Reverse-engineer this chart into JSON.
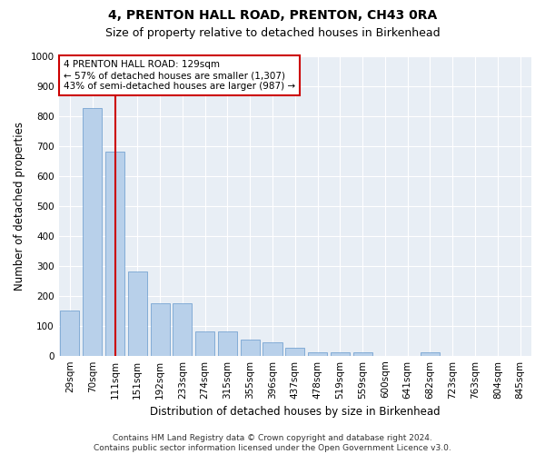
{
  "title": "4, PRENTON HALL ROAD, PRENTON, CH43 0RA",
  "subtitle": "Size of property relative to detached houses in Birkenhead",
  "xlabel": "Distribution of detached houses by size in Birkenhead",
  "ylabel": "Number of detached properties",
  "categories": [
    "29sqm",
    "70sqm",
    "111sqm",
    "151sqm",
    "192sqm",
    "233sqm",
    "274sqm",
    "315sqm",
    "355sqm",
    "396sqm",
    "437sqm",
    "478sqm",
    "519sqm",
    "559sqm",
    "600sqm",
    "641sqm",
    "682sqm",
    "723sqm",
    "763sqm",
    "804sqm",
    "845sqm"
  ],
  "values": [
    150,
    825,
    680,
    280,
    175,
    175,
    80,
    80,
    55,
    45,
    25,
    10,
    10,
    10,
    0,
    0,
    10,
    0,
    0,
    0,
    0
  ],
  "bar_color": "#b8d0ea",
  "bar_edge_color": "#6699cc",
  "marker_line_index": 2,
  "marker_line_color": "#cc0000",
  "annotation_box_color": "#cc0000",
  "annotation_text_line1": "4 PRENTON HALL ROAD: 129sqm",
  "annotation_text_line2": "← 57% of detached houses are smaller (1,307)",
  "annotation_text_line3": "43% of semi-detached houses are larger (987) →",
  "ylim": [
    0,
    1000
  ],
  "yticks": [
    0,
    100,
    200,
    300,
    400,
    500,
    600,
    700,
    800,
    900,
    1000
  ],
  "footer_line1": "Contains HM Land Registry data © Crown copyright and database right 2024.",
  "footer_line2": "Contains public sector information licensed under the Open Government Licence v3.0.",
  "fig_bg_color": "#ffffff",
  "plot_bg_color": "#e8eef5",
  "grid_color": "#ffffff",
  "title_fontsize": 10,
  "subtitle_fontsize": 9,
  "xlabel_fontsize": 8.5,
  "ylabel_fontsize": 8.5,
  "tick_fontsize": 7.5,
  "annotation_fontsize": 7.5,
  "footer_fontsize": 6.5
}
